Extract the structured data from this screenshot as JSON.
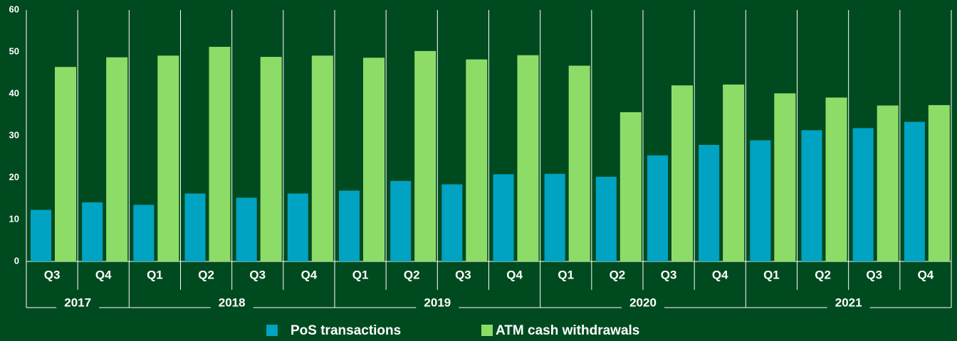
{
  "chart_data": {
    "type": "bar",
    "categories": [
      "Q3",
      "Q4",
      "Q1",
      "Q2",
      "Q3",
      "Q4",
      "Q1",
      "Q2",
      "Q3",
      "Q4",
      "Q1",
      "Q2",
      "Q3",
      "Q4",
      "Q1",
      "Q2",
      "Q3",
      "Q4"
    ],
    "groups": [
      {
        "label": "2017",
        "span": 2
      },
      {
        "label": "2018",
        "span": 4
      },
      {
        "label": "2019",
        "span": 4
      },
      {
        "label": "2020",
        "span": 4
      },
      {
        "label": "2021",
        "span": 4
      }
    ],
    "series": [
      {
        "name": "PoS transactions",
        "color": "#00a3c2",
        "values": [
          12.3,
          14.1,
          13.5,
          16.2,
          15.2,
          16.2,
          16.9,
          19.2,
          18.4,
          20.8,
          20.9,
          20.2,
          25.3,
          27.8,
          28.9,
          31.3,
          31.8,
          33.3
        ]
      },
      {
        "name": "ATM cash withdrawals",
        "color": "#8edc68",
        "values": [
          46.4,
          48.7,
          49.1,
          51.2,
          48.8,
          49.1,
          48.6,
          50.2,
          48.2,
          49.2,
          46.7,
          35.6,
          42.0,
          42.2,
          40.1,
          39.1,
          37.2,
          37.3
        ]
      }
    ],
    "ylim": [
      0,
      60
    ],
    "yticks": [
      0,
      10,
      20,
      30,
      40,
      50,
      60
    ],
    "legend": "bottom"
  }
}
